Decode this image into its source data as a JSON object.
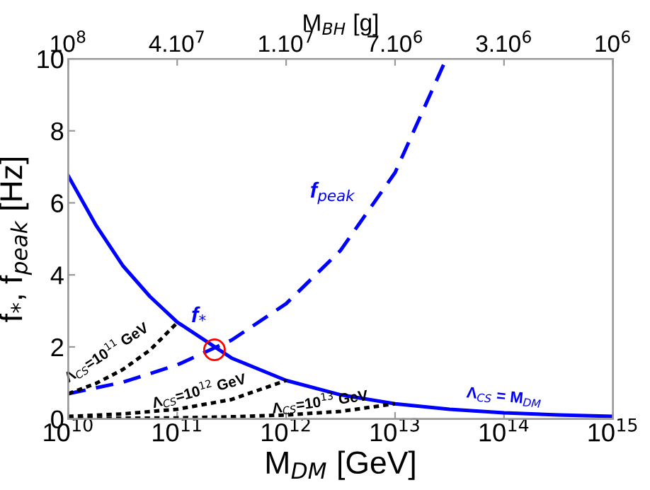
{
  "chart_data": {
    "type": "line",
    "xlabel": "M$_{DM}$ [GeV]",
    "ylabel": "f$_{*}$, f$_{peak}$ [Hz]",
    "x2label": "M$_{BH}$ [g]",
    "log": "x",
    "xlim": [
      10000000000.0,
      1000000000000000.0
    ],
    "ylim": [
      0,
      10
    ],
    "xticks": [
      {
        "value": 10000000000.0,
        "label": "10$^{10}$"
      },
      {
        "value": 100000000000.0,
        "label": "10$^{11}$"
      },
      {
        "value": 1000000000000.0,
        "label": "10$^{12}$"
      },
      {
        "value": 10000000000000.0,
        "label": "10$^{13}$"
      },
      {
        "value": 100000000000000.0,
        "label": "10$^{14}$"
      },
      {
        "value": 1000000000000000.0,
        "label": "10$^{15}$"
      }
    ],
    "yticks": [
      0,
      2,
      4,
      6,
      8,
      10
    ],
    "grid": false,
    "legend": false,
    "series": [
      {
        "name": "f$_{*}$",
        "color": "#0000ff",
        "line_style": "solid",
        "x": [
          10000000000.0,
          17800000000.0,
          31600000000.0,
          56200000000.0,
          100000000000.0,
          316000000000.0,
          1000000000000.0,
          3160000000000.0,
          10000000000000.0,
          31600000000000.0,
          100000000000000.0,
          316000000000000.0,
          1000000000000000.0
        ],
        "values": [
          6.75,
          5.4,
          4.26,
          3.4,
          2.69,
          1.69,
          1.07,
          0.67,
          0.42,
          0.27,
          0.17,
          0.11,
          0.07
        ]
      },
      {
        "name": "f$_{peak}$",
        "color": "#0000ff",
        "line_style": "dashed",
        "x": [
          10000000000.0,
          31600000000.0,
          100000000000.0,
          316000000000.0,
          1000000000000.0,
          3160000000000.0,
          10000000000000.0,
          29500000000000.0
        ],
        "values": [
          0.7,
          1.02,
          1.5,
          2.19,
          3.2,
          4.68,
          6.84,
          10
        ]
      },
      {
        "name": "Λ$_{CS}$=10$^{11}$ GeV",
        "color": "#000000",
        "line_style": "dotted",
        "x": [
          10000000000.0,
          17800000000.0,
          31600000000.0,
          56200000000.0,
          100000000000.0
        ],
        "values": [
          0.7,
          0.98,
          1.37,
          1.91,
          2.67
        ]
      },
      {
        "name": "Λ$_{CS}$=10$^{12}$ GeV",
        "color": "#000000",
        "line_style": "dotted",
        "x": [
          10000000000.0,
          31600000000.0,
          100000000000.0,
          316000000000.0,
          1000000000000.0
        ],
        "values": [
          0.07,
          0.14,
          0.27,
          0.54,
          1.07
        ]
      },
      {
        "name": "Λ$_{CS}$=10$^{13}$ GeV",
        "color": "#000000",
        "line_style": "dotted",
        "x": [
          10000000000.0,
          100000000000.0,
          316000000000.0,
          1000000000000.0,
          3160000000000.0,
          10000000000000.0
        ],
        "values": [
          0.01,
          0.03,
          0.06,
          0.11,
          0.21,
          0.42
        ]
      },
      {
        "type": "scatter",
        "color": "#ff0000",
        "marker": "circle",
        "x": [
          220000000000.0
        ],
        "values": [
          1.92
        ]
      }
    ],
    "annotations": [
      "Λ$_{CS}$ = M$_{DM}$",
      "10$^{8}$",
      "4.10$^{7}$",
      "1.10$^{7}$",
      "7.10$^{6}$",
      "3.10$^{6}$",
      "10$^{6}$"
    ]
  }
}
